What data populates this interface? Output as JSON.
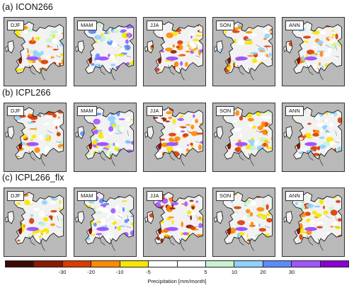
{
  "rows": [
    {
      "title": "(a) ICON266"
    },
    {
      "title": "(b) ICPL266"
    },
    {
      "title": "(c) ICPL266_flx"
    }
  ],
  "seasons": [
    "DJF",
    "MAM",
    "JJA",
    "SON",
    "ANN"
  ],
  "colorbar": {
    "colors": [
      "#3a0a00",
      "#8b1a00",
      "#d93b00",
      "#ff8a00",
      "#f7e600",
      "#ffffff",
      "#ffffff",
      "#c8f4cf",
      "#8fd2ff",
      "#5b8cff",
      "#a155ff",
      "#8a00d4"
    ],
    "ticks": [
      "-30",
      "-20",
      "-10",
      "-5",
      "5",
      "10",
      "20",
      "30"
    ],
    "label": "Precipitation [mm/month]"
  },
  "land_color": "#b9b9b9"
}
